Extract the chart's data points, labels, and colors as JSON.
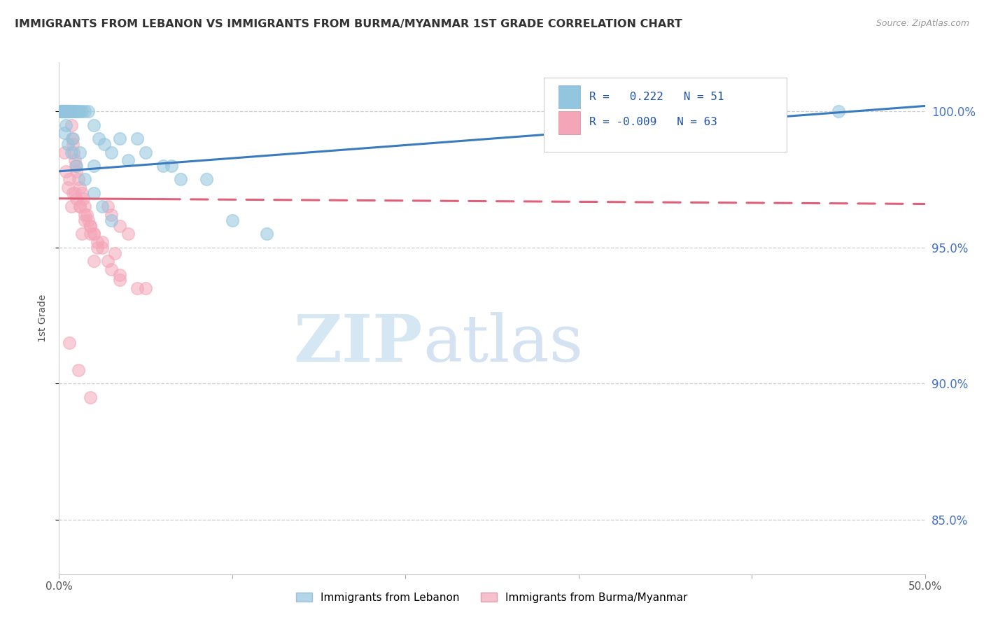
{
  "title": "IMMIGRANTS FROM LEBANON VS IMMIGRANTS FROM BURMA/MYANMAR 1ST GRADE CORRELATION CHART",
  "source": "Source: ZipAtlas.com",
  "ylabel": "1st Grade",
  "xlim": [
    0.0,
    50.0
  ],
  "ylim": [
    83.0,
    101.8
  ],
  "yticks": [
    85.0,
    90.0,
    95.0,
    100.0
  ],
  "ytick_labels": [
    "85.0%",
    "90.0%",
    "95.0%",
    "100.0%"
  ],
  "legend_label_blue": "Immigrants from Lebanon",
  "legend_label_pink": "Immigrants from Burma/Myanmar",
  "r_blue": 0.222,
  "n_blue": 51,
  "r_pink": -0.009,
  "n_pink": 63,
  "blue_color": "#92c5de",
  "pink_color": "#f4a6b8",
  "blue_line_color": "#3a7abf",
  "pink_line_color": "#e0607a",
  "watermark_zip": "ZIP",
  "watermark_atlas": "atlas",
  "scatter_blue_x": [
    0.1,
    0.15,
    0.2,
    0.25,
    0.3,
    0.35,
    0.4,
    0.45,
    0.5,
    0.55,
    0.6,
    0.65,
    0.7,
    0.75,
    0.8,
    0.85,
    0.9,
    0.95,
    1.0,
    1.1,
    1.2,
    1.3,
    1.5,
    1.7,
    2.0,
    2.3,
    2.6,
    3.0,
    3.5,
    4.0,
    5.0,
    6.0,
    7.0,
    0.3,
    0.5,
    0.7,
    1.0,
    1.5,
    2.0,
    2.5,
    3.0,
    4.5,
    6.5,
    8.5,
    10.0,
    12.0,
    0.4,
    0.8,
    1.2,
    2.0,
    45.0
  ],
  "scatter_blue_y": [
    100.0,
    100.0,
    100.0,
    100.0,
    100.0,
    100.0,
    100.0,
    100.0,
    100.0,
    100.0,
    100.0,
    100.0,
    100.0,
    100.0,
    100.0,
    100.0,
    100.0,
    100.0,
    100.0,
    100.0,
    100.0,
    100.0,
    100.0,
    100.0,
    99.5,
    99.0,
    98.8,
    98.5,
    99.0,
    98.2,
    98.5,
    98.0,
    97.5,
    99.2,
    98.8,
    98.5,
    98.0,
    97.5,
    97.0,
    96.5,
    96.0,
    99.0,
    98.0,
    97.5,
    96.0,
    95.5,
    99.5,
    99.0,
    98.5,
    98.0,
    100.0
  ],
  "scatter_pink_x": [
    0.1,
    0.15,
    0.2,
    0.25,
    0.3,
    0.35,
    0.4,
    0.45,
    0.5,
    0.55,
    0.6,
    0.65,
    0.7,
    0.75,
    0.8,
    0.85,
    0.9,
    0.95,
    1.0,
    1.1,
    1.2,
    1.3,
    1.4,
    1.5,
    1.6,
    1.7,
    1.8,
    2.0,
    2.2,
    2.5,
    2.8,
    3.0,
    3.5,
    4.0,
    0.3,
    0.6,
    0.9,
    1.2,
    1.5,
    1.8,
    2.2,
    2.8,
    3.5,
    4.5,
    0.4,
    0.8,
    1.2,
    1.8,
    2.5,
    3.2,
    0.5,
    1.0,
    1.5,
    2.0,
    3.0,
    0.7,
    1.3,
    2.0,
    3.5,
    5.0,
    0.6,
    1.1,
    1.8
  ],
  "scatter_pink_y": [
    100.0,
    100.0,
    100.0,
    100.0,
    100.0,
    100.0,
    100.0,
    100.0,
    100.0,
    100.0,
    100.0,
    100.0,
    99.5,
    99.0,
    98.8,
    98.5,
    98.2,
    98.0,
    97.8,
    97.5,
    97.2,
    97.0,
    96.8,
    96.5,
    96.2,
    96.0,
    95.8,
    95.5,
    95.2,
    95.0,
    96.5,
    96.2,
    95.8,
    95.5,
    98.5,
    97.5,
    97.0,
    96.5,
    96.0,
    95.5,
    95.0,
    94.5,
    94.0,
    93.5,
    97.8,
    97.0,
    96.5,
    95.8,
    95.2,
    94.8,
    97.2,
    96.8,
    96.2,
    95.5,
    94.2,
    96.5,
    95.5,
    94.5,
    93.8,
    93.5,
    91.5,
    90.5,
    89.5
  ],
  "blue_trend_y0": 97.8,
  "blue_trend_y1": 100.2,
  "pink_trend_y0": 96.8,
  "pink_trend_y1": 96.6
}
